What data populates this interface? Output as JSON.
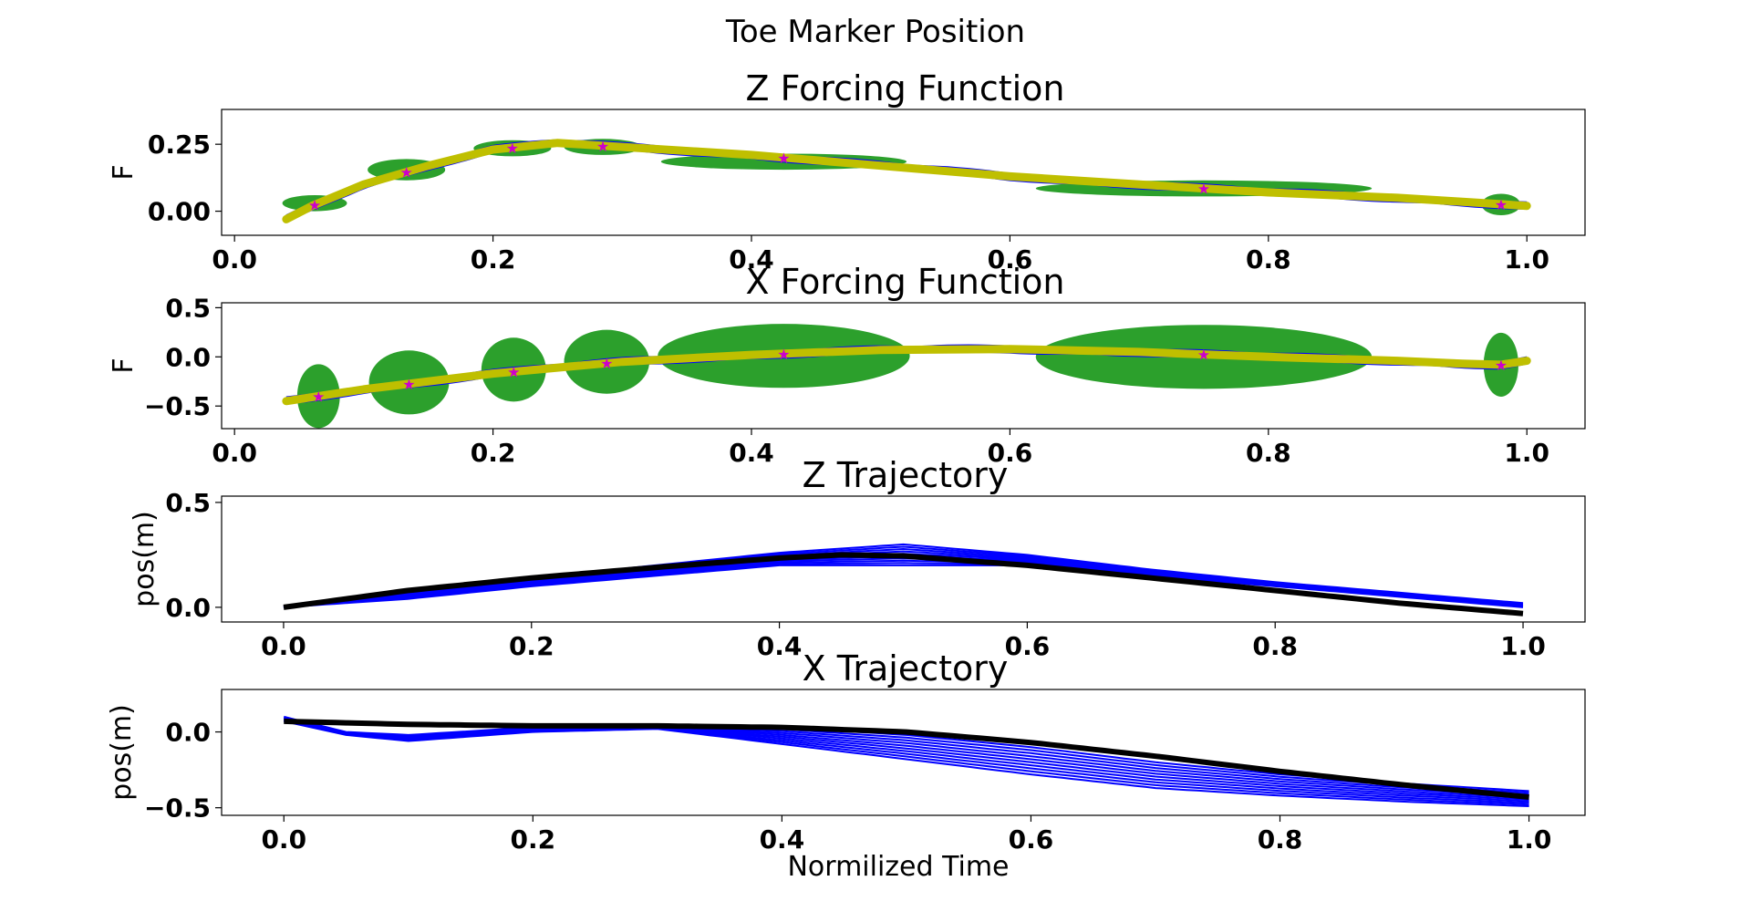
{
  "figure": {
    "suptitle": "Toe Marker Position",
    "xlabel": "Normilized Time"
  },
  "colors": {
    "demos": "#0000ff",
    "mean_forcing": "#bfbf00",
    "reproduced_traj": "#000000",
    "gaussians": "#2ca02c",
    "centers": "#cc00cc"
  },
  "chart_data": [
    {
      "type": "line",
      "title": "Z Forcing Function",
      "ylabel": "F",
      "xlim": [
        -0.01,
        1.045
      ],
      "ylim": [
        -0.09,
        0.38
      ],
      "xticks": [
        0.0,
        0.2,
        0.4,
        0.6,
        0.8,
        1.0
      ],
      "xtick_labels": [
        "0.0",
        "0.2",
        "0.4",
        "0.6",
        "0.8",
        "1.0"
      ],
      "yticks": [
        0.0,
        0.25
      ],
      "ytick_labels": [
        "0.00",
        "0.25"
      ],
      "mean_series": {
        "x": [
          0.04,
          0.06,
          0.1,
          0.15,
          0.2,
          0.25,
          0.3,
          0.4,
          0.5,
          0.6,
          0.7,
          0.8,
          0.9,
          0.95,
          1.0
        ],
        "y": [
          -0.03,
          0.02,
          0.1,
          0.17,
          0.23,
          0.255,
          0.24,
          0.21,
          0.17,
          0.13,
          0.1,
          0.07,
          0.05,
          0.035,
          0.02
        ]
      },
      "gaussians": [
        {
          "cx": 0.062,
          "cy": 0.03,
          "w": 0.05,
          "h": 0.06
        },
        {
          "cx": 0.133,
          "cy": 0.155,
          "w": 0.06,
          "h": 0.08
        },
        {
          "cx": 0.215,
          "cy": 0.235,
          "w": 0.06,
          "h": 0.06
        },
        {
          "cx": 0.285,
          "cy": 0.24,
          "w": 0.06,
          "h": 0.06
        },
        {
          "cx": 0.425,
          "cy": 0.185,
          "w": 0.19,
          "h": 0.06
        },
        {
          "cx": 0.75,
          "cy": 0.085,
          "w": 0.26,
          "h": 0.06
        },
        {
          "cx": 0.98,
          "cy": 0.025,
          "w": 0.03,
          "h": 0.08
        }
      ]
    },
    {
      "type": "line",
      "title": "X Forcing Function",
      "ylabel": "F",
      "xlim": [
        -0.01,
        1.045
      ],
      "ylim": [
        -0.73,
        0.55
      ],
      "xticks": [
        0.0,
        0.2,
        0.4,
        0.6,
        0.8,
        1.0
      ],
      "xtick_labels": [
        "0.0",
        "0.2",
        "0.4",
        "0.6",
        "0.8",
        "1.0"
      ],
      "yticks": [
        -0.5,
        0.0,
        0.5
      ],
      "ytick_labels": [
        "−0.5",
        "0.0",
        "0.5"
      ],
      "mean_series": {
        "x": [
          0.04,
          0.1,
          0.2,
          0.3,
          0.4,
          0.5,
          0.6,
          0.7,
          0.8,
          0.9,
          0.95,
          0.98,
          1.0
        ],
        "y": [
          -0.45,
          -0.33,
          -0.17,
          -0.05,
          0.02,
          0.07,
          0.08,
          0.05,
          0.0,
          -0.04,
          -0.07,
          -0.08,
          -0.04
        ]
      },
      "gaussians": [
        {
          "cx": 0.065,
          "cy": -0.4,
          "w": 0.033,
          "h": 0.65
        },
        {
          "cx": 0.135,
          "cy": -0.26,
          "w": 0.062,
          "h": 0.65
        },
        {
          "cx": 0.216,
          "cy": -0.13,
          "w": 0.05,
          "h": 0.65
        },
        {
          "cx": 0.288,
          "cy": -0.05,
          "w": 0.066,
          "h": 0.65
        },
        {
          "cx": 0.425,
          "cy": 0.01,
          "w": 0.195,
          "h": 0.65
        },
        {
          "cx": 0.75,
          "cy": 0.0,
          "w": 0.26,
          "h": 0.65
        },
        {
          "cx": 0.98,
          "cy": -0.08,
          "w": 0.027,
          "h": 0.65
        }
      ]
    },
    {
      "type": "line",
      "title": "Z Trajectory",
      "ylabel": "pos(m)",
      "xlim": [
        -0.05,
        1.05
      ],
      "ylim": [
        -0.07,
        0.53
      ],
      "xticks": [
        0.0,
        0.2,
        0.4,
        0.6,
        0.8,
        1.0
      ],
      "xtick_labels": [
        "0.0",
        "0.2",
        "0.4",
        "0.6",
        "0.8",
        "1.0"
      ],
      "yticks": [
        0.0,
        0.5
      ],
      "ytick_labels": [
        "0.0",
        "0.5"
      ],
      "reproduced": {
        "x": [
          0.0,
          0.1,
          0.2,
          0.3,
          0.4,
          0.45,
          0.5,
          0.6,
          0.7,
          0.8,
          0.9,
          1.0
        ],
        "y": [
          0.0,
          0.08,
          0.14,
          0.19,
          0.235,
          0.25,
          0.245,
          0.2,
          0.14,
          0.08,
          0.02,
          -0.03
        ]
      },
      "demo_envelope": {
        "x": [
          0.0,
          0.1,
          0.2,
          0.3,
          0.4,
          0.5,
          0.6,
          0.7,
          0.8,
          0.9,
          1.0
        ],
        "low": [
          0.0,
          0.04,
          0.1,
          0.15,
          0.2,
          0.2,
          0.2,
          0.15,
          0.1,
          0.05,
          0.0
        ],
        "high": [
          0.0,
          0.08,
          0.14,
          0.2,
          0.26,
          0.3,
          0.25,
          0.18,
          0.12,
          0.07,
          0.02
        ]
      }
    },
    {
      "type": "line",
      "title": "X Trajectory",
      "ylabel": "pos(m)",
      "xlim": [
        -0.05,
        1.045
      ],
      "ylim": [
        -0.55,
        0.28
      ],
      "xticks": [
        0.0,
        0.2,
        0.4,
        0.6,
        0.8,
        1.0
      ],
      "xtick_labels": [
        "0.0",
        "0.2",
        "0.4",
        "0.6",
        "0.8",
        "1.0"
      ],
      "yticks": [
        -0.5,
        0.0
      ],
      "ytick_labels": [
        "−0.5",
        "0.0"
      ],
      "reproduced": {
        "x": [
          0.0,
          0.1,
          0.2,
          0.3,
          0.4,
          0.5,
          0.6,
          0.7,
          0.8,
          0.9,
          1.0
        ],
        "y": [
          0.07,
          0.05,
          0.04,
          0.04,
          0.03,
          0.0,
          -0.07,
          -0.16,
          -0.26,
          -0.35,
          -0.43
        ]
      },
      "demo_envelope": {
        "x": [
          0.0,
          0.05,
          0.1,
          0.2,
          0.3,
          0.4,
          0.5,
          0.6,
          0.7,
          0.8,
          0.9,
          1.0
        ],
        "low": [
          0.07,
          -0.02,
          -0.06,
          0.0,
          0.02,
          -0.08,
          -0.18,
          -0.28,
          -0.37,
          -0.42,
          -0.46,
          -0.49
        ],
        "high": [
          0.1,
          0.0,
          -0.02,
          0.03,
          0.04,
          0.03,
          -0.02,
          -0.1,
          -0.2,
          -0.28,
          -0.34,
          -0.39
        ]
      }
    }
  ]
}
